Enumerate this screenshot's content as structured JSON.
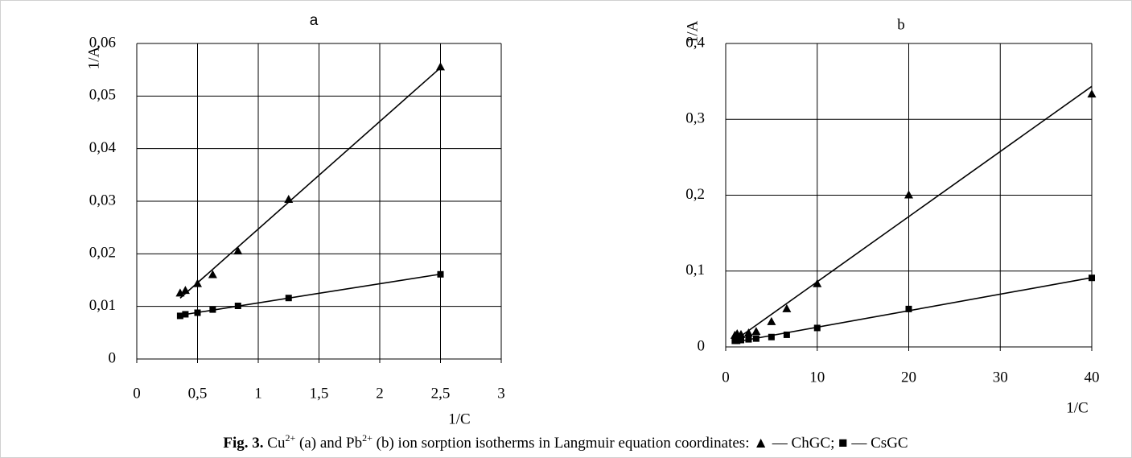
{
  "chart_data": [
    {
      "type": "scatter",
      "title": "a",
      "x_label": "1/C",
      "y_label": "1/A",
      "xlim": [
        0,
        3
      ],
      "xticks": [
        0,
        {
          "value": 0.5,
          "label": "0,5"
        },
        1,
        {
          "value": 1.5,
          "label": "1,5"
        },
        2,
        {
          "value": 2.5,
          "label": "2,5"
        },
        3
      ],
      "ylim": [
        0,
        0.06
      ],
      "yticks": [
        0,
        {
          "value": 0.01,
          "label": "0,01"
        },
        {
          "value": 0.02,
          "label": "0,02"
        },
        {
          "value": 0.03,
          "label": "0,03"
        },
        {
          "value": 0.04,
          "label": "0,04"
        },
        {
          "value": 0.05,
          "label": "0,05"
        },
        {
          "value": 0.06,
          "label": "0,06"
        }
      ],
      "grid": true,
      "trendline": true,
      "x": [
        0.357,
        0.4,
        0.5,
        0.625,
        0.833,
        1.25,
        2.5
      ],
      "series": [
        {
          "name": "ChGC",
          "color": "#000000",
          "marker": "triangle",
          "values": [
            0.0125,
            0.013,
            0.0143,
            0.016,
            0.0205,
            0.0303,
            0.0555
          ]
        },
        {
          "name": "CsGC",
          "color": "#000000",
          "marker": "square",
          "values": [
            0.0082,
            0.0085,
            0.0088,
            0.0094,
            0.0101,
            0.0116,
            0.0161
          ]
        }
      ]
    },
    {
      "type": "scatter",
      "title": "b",
      "x_label": "1/C",
      "y_label": "1/A",
      "xlim": [
        0,
        40
      ],
      "xticks": [
        0,
        10,
        20,
        30,
        40
      ],
      "ylim": [
        0,
        0.4
      ],
      "yticks": [
        0,
        {
          "value": 0.1,
          "label": "0,1"
        },
        {
          "value": 0.2,
          "label": "0,2"
        },
        {
          "value": 0.3,
          "label": "0,3"
        },
        {
          "value": 0.4,
          "label": "0,4"
        }
      ],
      "grid": true,
      "trendline": true,
      "x": [
        1,
        1.25,
        1.67,
        2.5,
        3.33,
        5,
        6.67,
        10,
        20,
        40
      ],
      "series": [
        {
          "name": "ChGC",
          "color": "#000000",
          "marker": "triangle",
          "values": [
            0.015,
            0.017,
            0.016,
            0.018,
            0.02,
            0.033,
            0.05,
            0.083,
            0.2,
            0.333
          ]
        },
        {
          "name": "CsGC",
          "color": "#000000",
          "marker": "square",
          "values": [
            0.008,
            0.008,
            0.009,
            0.01,
            0.011,
            0.013,
            0.016,
            0.025,
            0.05,
            0.091
          ]
        }
      ]
    }
  ],
  "caption": {
    "label": "Fig. 3.",
    "ion1": "Cu",
    "sup1": "2+",
    "text1": " (a) and ",
    "ion2": "Pb",
    "sup2": "2+",
    "text2": " (b) ion sorption isotherms in Langmuir equation coordinates: ▲ — ",
    "sep": "; ■ — "
  }
}
